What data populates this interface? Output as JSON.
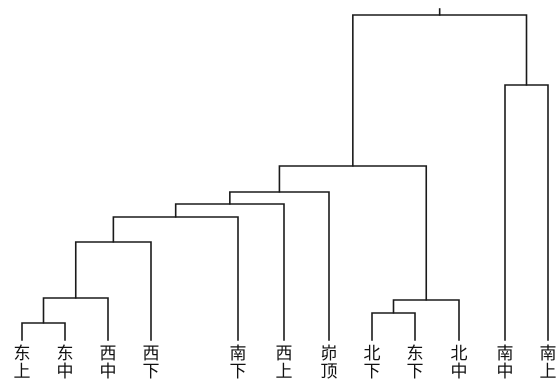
{
  "dendrogram": {
    "leaves": [
      {
        "id": "l1",
        "line1": "东",
        "line2": "上"
      },
      {
        "id": "l2",
        "line1": "东",
        "line2": "中"
      },
      {
        "id": "l3",
        "line1": "西",
        "line2": "中"
      },
      {
        "id": "l4",
        "line1": "西",
        "line2": "下"
      },
      {
        "id": "l5",
        "line1": "南",
        "line2": "下"
      },
      {
        "id": "l6",
        "line1": "西",
        "line2": "上"
      },
      {
        "id": "l7",
        "line1": "峁",
        "line2": "顶"
      },
      {
        "id": "l8",
        "line1": "北",
        "line2": "下"
      },
      {
        "id": "l9",
        "line1": "东",
        "line2": "下"
      },
      {
        "id": "l10",
        "line1": "北",
        "line2": "中"
      },
      {
        "id": "l11",
        "line1": "南",
        "line2": "中"
      },
      {
        "id": "l12",
        "line1": "南",
        "line2": "上"
      }
    ],
    "merges": [
      {
        "id": "c1",
        "children": [
          "l1",
          "l2"
        ]
      },
      {
        "id": "c2",
        "children": [
          "c1",
          "l3"
        ]
      },
      {
        "id": "c3",
        "children": [
          "c2",
          "l4"
        ]
      },
      {
        "id": "c4",
        "children": [
          "l8",
          "l9"
        ]
      },
      {
        "id": "c5",
        "children": [
          "c4",
          "l10"
        ]
      },
      {
        "id": "c6",
        "children": [
          "c3",
          "l5"
        ]
      },
      {
        "id": "c7",
        "children": [
          "c6",
          "l6"
        ]
      },
      {
        "id": "c8",
        "children": [
          "c7",
          "l7"
        ]
      },
      {
        "id": "c9",
        "children": [
          "c8",
          "c5"
        ]
      },
      {
        "id": "c10",
        "children": [
          "l11",
          "l12"
        ]
      },
      {
        "id": "c11",
        "children": [
          "c9",
          "c10"
        ]
      }
    ]
  }
}
